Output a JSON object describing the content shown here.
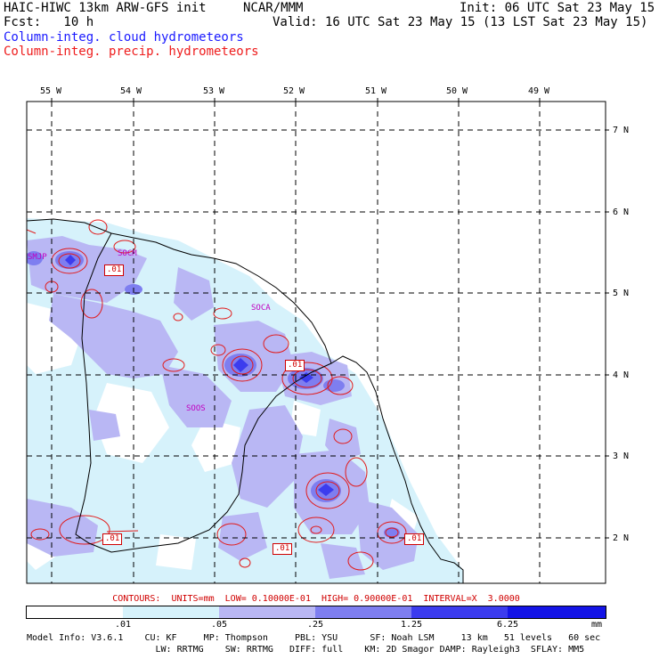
{
  "header": {
    "model": "HAIC-HIWC 13km ARW-GFS init",
    "org": "NCAR/MMM",
    "init": "Init: 06 UTC Sat 23 May 15",
    "fcst": "Fcst:   10 h",
    "valid": "Valid: 16 UTC Sat 23 May 15 (13 LST Sat 23 May 15)",
    "field_cloud": "Column-integ. cloud hydrometeors",
    "field_precip": "Column-integ. precip. hydrometeors"
  },
  "map": {
    "longitude_labels": [
      "55 W",
      "54 W",
      "53 W",
      "52 W",
      "51 W",
      "50 W",
      "49 W"
    ],
    "latitude_labels": [
      "7 N",
      "6 N",
      "5 N",
      "4 N",
      "3 N",
      "2 N"
    ],
    "stations": [
      "SMJP",
      "SOCM",
      "SOCA",
      "SOOS"
    ],
    "contour_labels": [
      ".01",
      ".01",
      ".01",
      ".01",
      ".01"
    ],
    "colors": {
      "very_light": "#d6f2fb",
      "light": "#b9b7f4",
      "medium": "#7e7ef0",
      "dark": "#3c3cee",
      "darkest": "#1414e6",
      "contour": "#e21a1a",
      "boundary": "#000000"
    }
  },
  "contour_info": "CONTOURS:  UNITS=mm  LOW= 0.10000E-01  HIGH= 0.90000E-01  INTERVAL=X  3.0000",
  "legend": {
    "ticks": [
      ".01",
      ".05",
      ".25",
      "1.25",
      "6.25"
    ],
    "unit": "mm",
    "colors": [
      "#ffffff",
      "#d6f2fb",
      "#b9b7f4",
      "#7e7ef0",
      "#3c3cee",
      "#1414e6"
    ]
  },
  "model_info": {
    "line1": "Model Info: V3.6.1    CU: KF     MP: Thompson     PBL: YSU      SF: Noah LSM     13 km   51 levels   60 sec",
    "line2": "                        LW: RRTMG    SW: RRTMG   DIFF: full    KM: 2D Smagor DAMP: Rayleigh3  SFLAY: MM5"
  }
}
